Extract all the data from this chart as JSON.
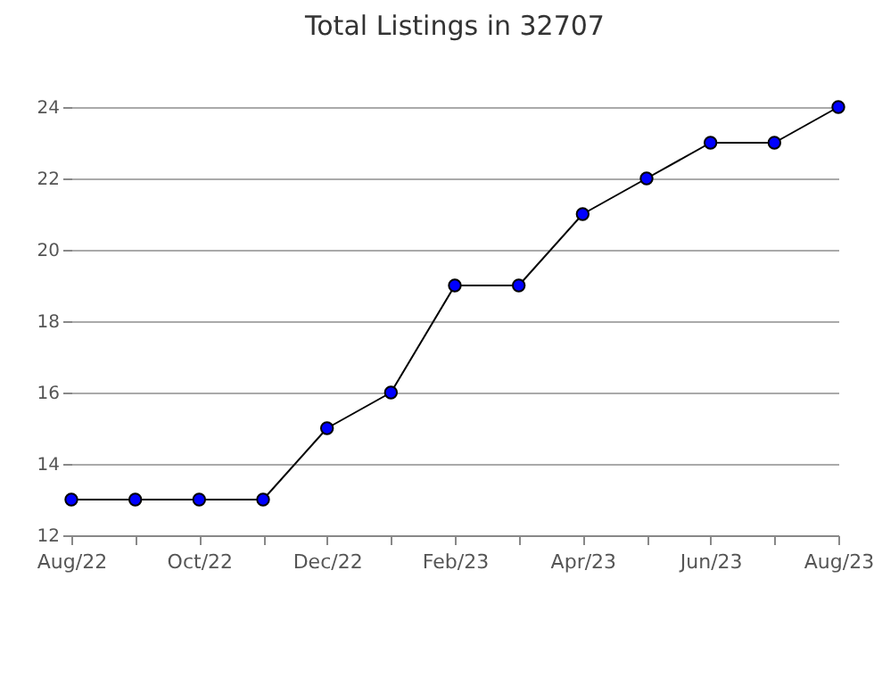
{
  "chart_data": {
    "type": "line",
    "title": "Total Listings in 32707",
    "categories": [
      "Aug/22",
      null,
      "Oct/22",
      null,
      "Dec/22",
      null,
      "Feb/23",
      null,
      "Apr/23",
      null,
      "Jun/23",
      null,
      "Aug/23"
    ],
    "series": [
      {
        "color": "#0000ff",
        "values": [
          13,
          13,
          13,
          13,
          15,
          16,
          19,
          19,
          21,
          22,
          23,
          23,
          24
        ]
      }
    ],
    "ylim": [
      12,
      24
    ],
    "yticks": [
      12,
      14,
      16,
      18,
      20,
      22,
      24
    ],
    "grid": "y",
    "marker": "circle",
    "line_style": "solid"
  }
}
